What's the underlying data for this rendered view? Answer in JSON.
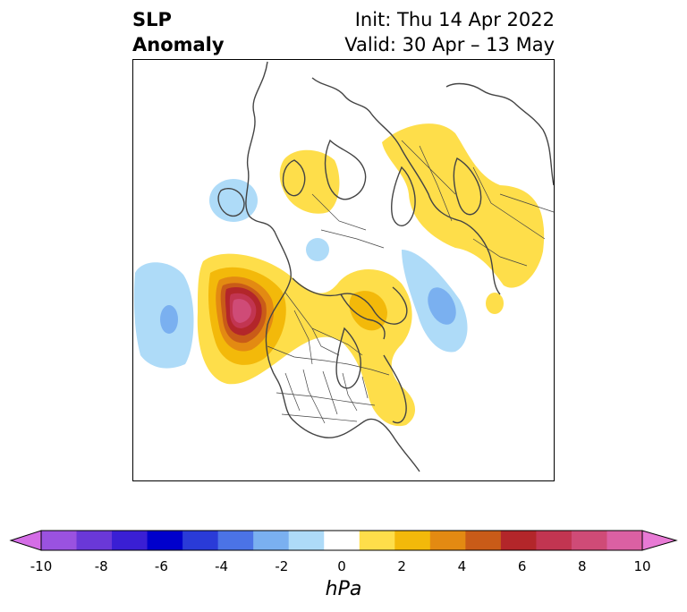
{
  "title": {
    "line1": "SLP",
    "line2": "Anomaly",
    "init": "Init: Thu 14 Apr 2022",
    "valid": "Valid: 30 Apr – 13 May"
  },
  "colorbar": {
    "unit": "hPa",
    "ticks": [
      "-10",
      "-8",
      "-6",
      "-4",
      "-2",
      "0",
      "2",
      "4",
      "6",
      "8",
      "10"
    ],
    "colors": [
      "#d46de6",
      "#9a52e0",
      "#6a38d8",
      "#3a1fd4",
      "#0000cc",
      "#2a3bd8",
      "#4b73e6",
      "#7ab0f0",
      "#aedbf8",
      "#ffffff",
      "#fede4a",
      "#f3b90a",
      "#e38a12",
      "#c95b18",
      "#b3262a",
      "#c23551",
      "#cf4b77",
      "#db60a3",
      "#e87ad5"
    ]
  },
  "colors": {
    "coast": "#444444",
    "frame": "#000000"
  }
}
